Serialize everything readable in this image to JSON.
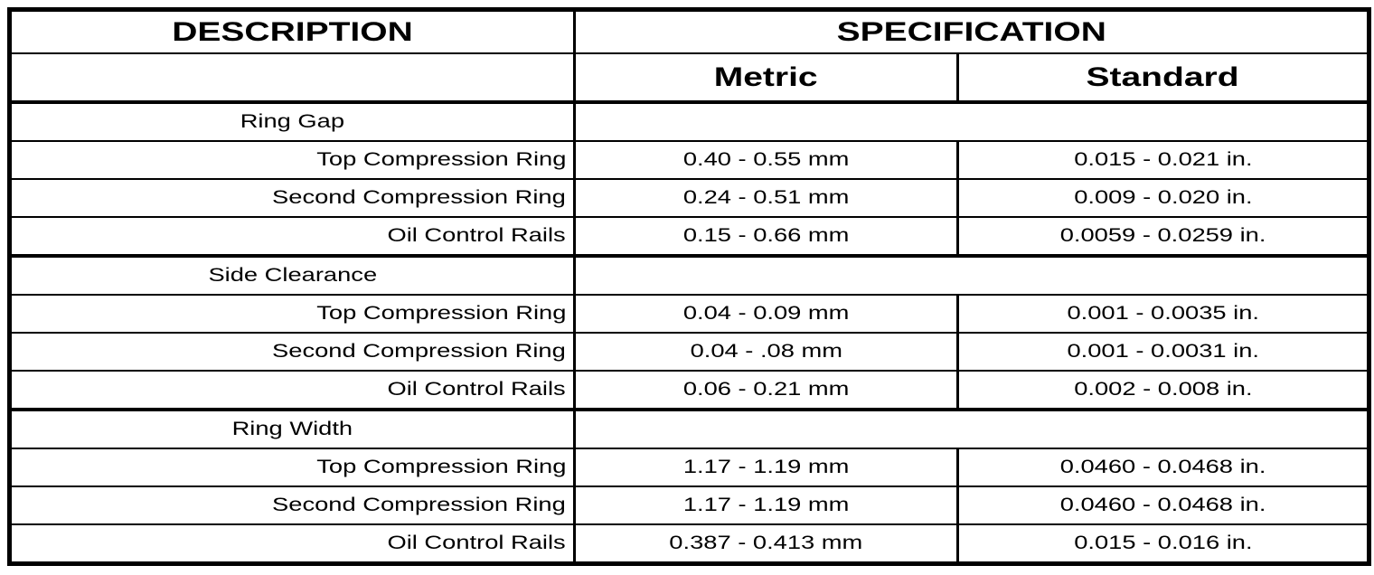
{
  "table": {
    "header": {
      "description": "DESCRIPTION",
      "specification": "SPECIFICATION",
      "metric": "Metric",
      "standard": "Standard"
    },
    "sections": [
      {
        "title": "Ring Gap",
        "rows": [
          {
            "label": "Top Compression Ring",
            "metric": "0.40 - 0.55 mm",
            "standard": "0.015 - 0.021 in."
          },
          {
            "label": "Second Compression Ring",
            "metric": "0.24 - 0.51 mm",
            "standard": "0.009 - 0.020 in."
          },
          {
            "label": "Oil Control Rails",
            "metric": "0.15 - 0.66 mm",
            "standard": "0.0059 - 0.0259 in."
          }
        ]
      },
      {
        "title": "Side Clearance",
        "rows": [
          {
            "label": "Top Compression Ring",
            "metric": "0.04 - 0.09 mm",
            "standard": "0.001 - 0.0035 in."
          },
          {
            "label": "Second Compression Ring",
            "metric": "0.04 - .08 mm",
            "standard": "0.001 - 0.0031 in."
          },
          {
            "label": "Oil Control Rails",
            "metric": "0.06 - 0.21 mm",
            "standard": "0.002 - 0.008 in."
          }
        ]
      },
      {
        "title": "Ring Width",
        "rows": [
          {
            "label": "Top Compression Ring",
            "metric": "1.17 - 1.19 mm",
            "standard": "0.0460 - 0.0468 in."
          },
          {
            "label": "Second Compression Ring",
            "metric": "1.17 - 1.19 mm",
            "standard": "0.0460 - 0.0468 in."
          },
          {
            "label": "Oil Control Rails",
            "metric": "0.387 - 0.413 mm",
            "standard": "0.015 - 0.016 in."
          }
        ]
      }
    ]
  },
  "colors": {
    "border": "#000000",
    "background": "#ffffff",
    "text": "#000000"
  }
}
